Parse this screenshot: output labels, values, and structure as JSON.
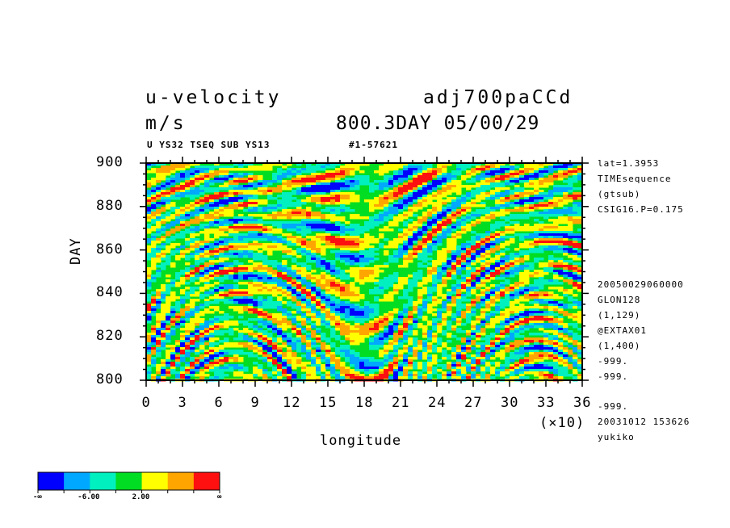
{
  "header": {
    "title_left": "u-velocity",
    "title_right": "adj700paCCd",
    "units": "m/s",
    "time_label": "800.3DAY 05/00/29",
    "subtitle": "U YS32 TSEQ SUB YS13",
    "run_id": "#1-57621"
  },
  "side_info": {
    "top": [
      "lat=1.3953",
      "TIMEsequence",
      "(gtsub)",
      "CSIG16.P=0.175"
    ],
    "bottom": [
      "20050029060000",
      "GLON128",
      "(1,129)",
      "@EXTAX01",
      "(1,400)",
      "-999.",
      "-999.",
      "-999.",
      "20031012 153626",
      "yukiko"
    ]
  },
  "chart_data": {
    "type": "heatmap",
    "title": "u-velocity",
    "units": "m/s",
    "xlabel": "longitude",
    "ylabel": "DAY",
    "x_multiplier": "(×10)",
    "xlim": [
      0,
      36
    ],
    "ylim": [
      800,
      900
    ],
    "x_ticks": [
      "0",
      "3",
      "6",
      "9",
      "12",
      "15",
      "18",
      "21",
      "24",
      "27",
      "30",
      "33",
      "36"
    ],
    "y_ticks": [
      "800",
      "820",
      "840",
      "860",
      "880",
      "900"
    ],
    "colors": [
      "#0000ff",
      "#00a8ff",
      "#00f0c0",
      "#00dd22",
      "#ffff00",
      "#ffa500",
      "#ff1010"
    ],
    "colorbar_labels": [
      "-∞",
      "-6.00",
      "2.00",
      "∞"
    ]
  }
}
